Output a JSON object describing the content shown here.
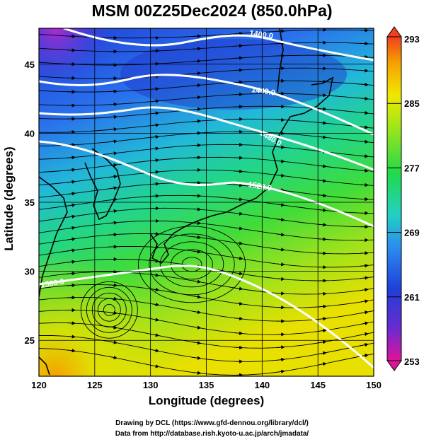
{
  "title": "MSM 00Z25Dec2024 (850.0hPa)",
  "chart_data": {
    "type": "heatmap",
    "xlabel": "Longitude (degrees)",
    "ylabel": "Latitude  (degrees)",
    "xlim": [
      120,
      150
    ],
    "ylim": [
      22.4,
      47.6
    ],
    "x_ticks": [
      "120",
      "125",
      "130",
      "135",
      "140",
      "145",
      "150"
    ],
    "y_ticks": [
      "25",
      "30",
      "35",
      "40",
      "45"
    ],
    "grid": true,
    "colorbar": {
      "ticks": [
        "293",
        "285",
        "277",
        "269",
        "261",
        "253"
      ],
      "range": [
        253,
        293
      ],
      "colors": [
        "#e0139a",
        "#6a2bd0",
        "#1f3fd8",
        "#2c8cf0",
        "#23d0c4",
        "#22d94a",
        "#9ee61a",
        "#f0e800",
        "#f5a000",
        "#f04020"
      ]
    },
    "contours": [
      {
        "label": "1400.0",
        "value": 1400
      },
      {
        "label": "1440.0",
        "value": 1440
      },
      {
        "label": "1480.0",
        "value": 1480
      },
      {
        "label": "1520.0",
        "value": 1520
      },
      {
        "label": "1560.0",
        "value": 1560
      }
    ]
  },
  "credits": {
    "line1": "Drawing by DCL (https://www.gfd-dennou.org/library/dcl/)",
    "line2": "Data from http://database.rish.kyoto-u.ac.jp/arch/jmadata/"
  }
}
